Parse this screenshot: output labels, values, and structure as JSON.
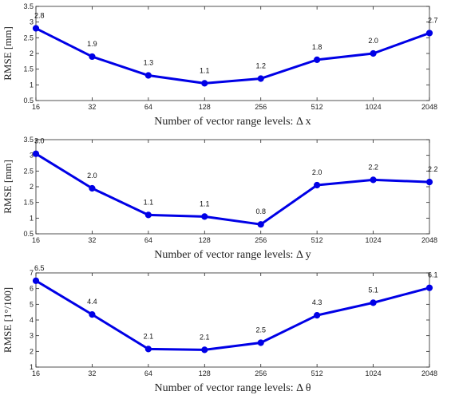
{
  "chart_data": [
    {
      "type": "line",
      "categories": [
        "16",
        "32",
        "64",
        "128",
        "256",
        "512",
        "1024",
        "2048"
      ],
      "values": [
        2.8,
        1.9,
        1.3,
        1.05,
        1.2,
        1.8,
        2.0,
        2.65
      ],
      "data_labels": [
        "2.8",
        "1.9",
        "1.3",
        "1.1",
        "1.2",
        "1.8",
        "2.0",
        "2.7"
      ],
      "xlabel": "Number of vector range levels: Δ x",
      "ylabel": "RMSE [mm]",
      "ylim": [
        0.5,
        3.5
      ],
      "yticks": [
        "0.5",
        "1",
        "1.5",
        "2",
        "2.5",
        "3",
        "3.5"
      ],
      "x_scale": "log2",
      "color": "#0000e6"
    },
    {
      "type": "line",
      "categories": [
        "16",
        "32",
        "64",
        "128",
        "256",
        "512",
        "1024",
        "2048"
      ],
      "values": [
        3.05,
        1.95,
        1.1,
        1.05,
        0.8,
        2.05,
        2.22,
        2.15
      ],
      "data_labels": [
        "3.0",
        "2.0",
        "1.1",
        "1.1",
        "0.8",
        "2.0",
        "2.2",
        "2.2"
      ],
      "xlabel": "Number of vector range levels: Δ y",
      "ylabel": "RMSE [mm]",
      "ylim": [
        0.5,
        3.5
      ],
      "yticks": [
        "0.5",
        "1",
        "1.5",
        "2",
        "2.5",
        "3",
        "3.5"
      ],
      "x_scale": "log2",
      "color": "#0000e6"
    },
    {
      "type": "line",
      "categories": [
        "16",
        "32",
        "64",
        "128",
        "256",
        "512",
        "1024",
        "2048"
      ],
      "values": [
        6.5,
        4.35,
        2.15,
        2.1,
        2.55,
        4.3,
        5.1,
        6.05
      ],
      "data_labels": [
        "6.5",
        "4.4",
        "2.1",
        "2.1",
        "2.5",
        "4.3",
        "5.1",
        "6.1"
      ],
      "xlabel": "Number of vector range levels: Δ θ",
      "ylabel": "RMSE [1°/100]",
      "ylim": [
        1,
        7
      ],
      "yticks": [
        "1",
        "2",
        "3",
        "4",
        "5",
        "6",
        "7"
      ],
      "x_scale": "log2",
      "color": "#0000e6"
    }
  ]
}
